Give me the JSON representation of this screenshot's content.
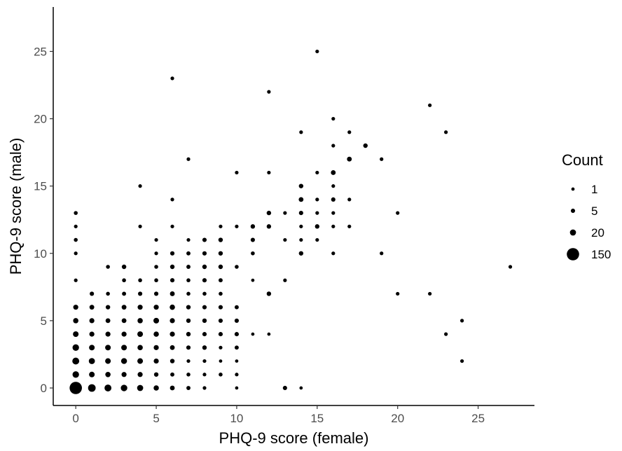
{
  "chart_data": {
    "type": "scatter",
    "title": "",
    "xlabel": "PHQ-9 score (female)",
    "ylabel": "PHQ-9 score (male)",
    "xlim": [
      -1.4,
      28.5
    ],
    "ylim": [
      -1.3,
      28.3
    ],
    "xticks": [
      0,
      5,
      10,
      15,
      20,
      25
    ],
    "yticks": [
      0,
      5,
      10,
      15,
      20,
      25
    ],
    "grid": false,
    "legend": {
      "title": "Count",
      "placement": "right",
      "entries": [
        {
          "label": "1",
          "value": 1
        },
        {
          "label": "5",
          "value": 5
        },
        {
          "label": "20",
          "value": 20
        },
        {
          "label": "150",
          "value": 150
        }
      ]
    },
    "points": [
      {
        "x": 0,
        "y": 0,
        "count": 150
      },
      {
        "x": 1,
        "y": 0,
        "count": 40
      },
      {
        "x": 2,
        "y": 0,
        "count": 30
      },
      {
        "x": 3,
        "y": 0,
        "count": 25
      },
      {
        "x": 4,
        "y": 0,
        "count": 20
      },
      {
        "x": 5,
        "y": 0,
        "count": 12
      },
      {
        "x": 6,
        "y": 0,
        "count": 8
      },
      {
        "x": 7,
        "y": 0,
        "count": 4
      },
      {
        "x": 8,
        "y": 0,
        "count": 2
      },
      {
        "x": 10,
        "y": 0,
        "count": 1
      },
      {
        "x": 13,
        "y": 0,
        "count": 5
      },
      {
        "x": 14,
        "y": 0,
        "count": 1
      },
      {
        "x": 0,
        "y": 1,
        "count": 25
      },
      {
        "x": 1,
        "y": 1,
        "count": 15
      },
      {
        "x": 2,
        "y": 1,
        "count": 12
      },
      {
        "x": 3,
        "y": 1,
        "count": 10
      },
      {
        "x": 4,
        "y": 1,
        "count": 10
      },
      {
        "x": 5,
        "y": 1,
        "count": 6
      },
      {
        "x": 6,
        "y": 1,
        "count": 4
      },
      {
        "x": 7,
        "y": 1,
        "count": 3
      },
      {
        "x": 8,
        "y": 1,
        "count": 2
      },
      {
        "x": 9,
        "y": 1,
        "count": 3
      },
      {
        "x": 10,
        "y": 1,
        "count": 2
      },
      {
        "x": 0,
        "y": 2,
        "count": 30
      },
      {
        "x": 1,
        "y": 2,
        "count": 20
      },
      {
        "x": 2,
        "y": 2,
        "count": 15
      },
      {
        "x": 3,
        "y": 2,
        "count": 18
      },
      {
        "x": 4,
        "y": 2,
        "count": 15
      },
      {
        "x": 5,
        "y": 2,
        "count": 10
      },
      {
        "x": 6,
        "y": 2,
        "count": 6
      },
      {
        "x": 7,
        "y": 2,
        "count": 2
      },
      {
        "x": 8,
        "y": 2,
        "count": 2
      },
      {
        "x": 9,
        "y": 2,
        "count": 1
      },
      {
        "x": 10,
        "y": 2,
        "count": 1
      },
      {
        "x": 0,
        "y": 3,
        "count": 25
      },
      {
        "x": 1,
        "y": 3,
        "count": 15
      },
      {
        "x": 2,
        "y": 3,
        "count": 15
      },
      {
        "x": 3,
        "y": 3,
        "count": 15
      },
      {
        "x": 4,
        "y": 3,
        "count": 12
      },
      {
        "x": 5,
        "y": 3,
        "count": 10
      },
      {
        "x": 6,
        "y": 3,
        "count": 8
      },
      {
        "x": 7,
        "y": 3,
        "count": 5
      },
      {
        "x": 8,
        "y": 3,
        "count": 6
      },
      {
        "x": 9,
        "y": 3,
        "count": 2
      },
      {
        "x": 10,
        "y": 3,
        "count": 4
      },
      {
        "x": 0,
        "y": 4,
        "count": 15
      },
      {
        "x": 1,
        "y": 4,
        "count": 10
      },
      {
        "x": 2,
        "y": 4,
        "count": 10
      },
      {
        "x": 3,
        "y": 4,
        "count": 10
      },
      {
        "x": 4,
        "y": 4,
        "count": 15
      },
      {
        "x": 5,
        "y": 4,
        "count": 12
      },
      {
        "x": 6,
        "y": 4,
        "count": 10
      },
      {
        "x": 7,
        "y": 4,
        "count": 6
      },
      {
        "x": 8,
        "y": 4,
        "count": 5
      },
      {
        "x": 9,
        "y": 4,
        "count": 5
      },
      {
        "x": 10,
        "y": 4,
        "count": 5
      },
      {
        "x": 11,
        "y": 4,
        "count": 1
      },
      {
        "x": 12,
        "y": 4,
        "count": 1
      },
      {
        "x": 0,
        "y": 5,
        "count": 12
      },
      {
        "x": 1,
        "y": 5,
        "count": 10
      },
      {
        "x": 2,
        "y": 5,
        "count": 8
      },
      {
        "x": 3,
        "y": 5,
        "count": 8
      },
      {
        "x": 4,
        "y": 5,
        "count": 12
      },
      {
        "x": 5,
        "y": 5,
        "count": 15
      },
      {
        "x": 6,
        "y": 5,
        "count": 10
      },
      {
        "x": 7,
        "y": 5,
        "count": 6
      },
      {
        "x": 8,
        "y": 5,
        "count": 6
      },
      {
        "x": 9,
        "y": 5,
        "count": 5
      },
      {
        "x": 10,
        "y": 5,
        "count": 5
      },
      {
        "x": 0,
        "y": 6,
        "count": 10
      },
      {
        "x": 1,
        "y": 6,
        "count": 8
      },
      {
        "x": 2,
        "y": 6,
        "count": 6
      },
      {
        "x": 3,
        "y": 6,
        "count": 8
      },
      {
        "x": 4,
        "y": 6,
        "count": 10
      },
      {
        "x": 5,
        "y": 6,
        "count": 10
      },
      {
        "x": 6,
        "y": 6,
        "count": 12
      },
      {
        "x": 7,
        "y": 6,
        "count": 6
      },
      {
        "x": 8,
        "y": 6,
        "count": 5
      },
      {
        "x": 9,
        "y": 6,
        "count": 5
      },
      {
        "x": 10,
        "y": 6,
        "count": 4
      },
      {
        "x": 1,
        "y": 7,
        "count": 5
      },
      {
        "x": 2,
        "y": 7,
        "count": 3
      },
      {
        "x": 3,
        "y": 7,
        "count": 4
      },
      {
        "x": 4,
        "y": 7,
        "count": 5
      },
      {
        "x": 5,
        "y": 7,
        "count": 5
      },
      {
        "x": 6,
        "y": 7,
        "count": 8
      },
      {
        "x": 7,
        "y": 7,
        "count": 3
      },
      {
        "x": 8,
        "y": 7,
        "count": 3
      },
      {
        "x": 9,
        "y": 7,
        "count": 3
      },
      {
        "x": 12,
        "y": 7,
        "count": 6
      },
      {
        "x": 20,
        "y": 7,
        "count": 2
      },
      {
        "x": 22,
        "y": 7,
        "count": 2
      },
      {
        "x": 0,
        "y": 8,
        "count": 2
      },
      {
        "x": 3,
        "y": 8,
        "count": 3
      },
      {
        "x": 4,
        "y": 8,
        "count": 3
      },
      {
        "x": 5,
        "y": 8,
        "count": 3
      },
      {
        "x": 6,
        "y": 8,
        "count": 5
      },
      {
        "x": 7,
        "y": 8,
        "count": 3
      },
      {
        "x": 8,
        "y": 8,
        "count": 5
      },
      {
        "x": 9,
        "y": 8,
        "count": 4
      },
      {
        "x": 11,
        "y": 8,
        "count": 1
      },
      {
        "x": 13,
        "y": 8,
        "count": 2
      },
      {
        "x": 2,
        "y": 9,
        "count": 3
      },
      {
        "x": 3,
        "y": 9,
        "count": 6
      },
      {
        "x": 5,
        "y": 9,
        "count": 3
      },
      {
        "x": 6,
        "y": 9,
        "count": 6
      },
      {
        "x": 7,
        "y": 9,
        "count": 4
      },
      {
        "x": 8,
        "y": 9,
        "count": 6
      },
      {
        "x": 9,
        "y": 9,
        "count": 6
      },
      {
        "x": 10,
        "y": 9,
        "count": 3
      },
      {
        "x": 27,
        "y": 9,
        "count": 2
      },
      {
        "x": 0,
        "y": 10,
        "count": 2
      },
      {
        "x": 5,
        "y": 10,
        "count": 2
      },
      {
        "x": 6,
        "y": 10,
        "count": 5
      },
      {
        "x": 7,
        "y": 10,
        "count": 4
      },
      {
        "x": 8,
        "y": 10,
        "count": 5
      },
      {
        "x": 9,
        "y": 10,
        "count": 6
      },
      {
        "x": 11,
        "y": 10,
        "count": 3
      },
      {
        "x": 14,
        "y": 10,
        "count": 6
      },
      {
        "x": 16,
        "y": 10,
        "count": 2
      },
      {
        "x": 19,
        "y": 10,
        "count": 2
      },
      {
        "x": 0,
        "y": 11,
        "count": 3
      },
      {
        "x": 5,
        "y": 11,
        "count": 2
      },
      {
        "x": 7,
        "y": 11,
        "count": 2
      },
      {
        "x": 8,
        "y": 11,
        "count": 5
      },
      {
        "x": 9,
        "y": 11,
        "count": 6
      },
      {
        "x": 11,
        "y": 11,
        "count": 5
      },
      {
        "x": 13,
        "y": 11,
        "count": 2
      },
      {
        "x": 14,
        "y": 11,
        "count": 2
      },
      {
        "x": 15,
        "y": 11,
        "count": 2
      },
      {
        "x": 0,
        "y": 12,
        "count": 2
      },
      {
        "x": 4,
        "y": 12,
        "count": 2
      },
      {
        "x": 6,
        "y": 12,
        "count": 2
      },
      {
        "x": 9,
        "y": 12,
        "count": 2
      },
      {
        "x": 10,
        "y": 12,
        "count": 2
      },
      {
        "x": 11,
        "y": 12,
        "count": 6
      },
      {
        "x": 12,
        "y": 12,
        "count": 6
      },
      {
        "x": 14,
        "y": 12,
        "count": 2
      },
      {
        "x": 15,
        "y": 12,
        "count": 6
      },
      {
        "x": 16,
        "y": 12,
        "count": 2
      },
      {
        "x": 17,
        "y": 12,
        "count": 2
      },
      {
        "x": 0,
        "y": 13,
        "count": 3
      },
      {
        "x": 12,
        "y": 13,
        "count": 6
      },
      {
        "x": 13,
        "y": 13,
        "count": 2
      },
      {
        "x": 14,
        "y": 13,
        "count": 5
      },
      {
        "x": 15,
        "y": 13,
        "count": 2
      },
      {
        "x": 16,
        "y": 13,
        "count": 2
      },
      {
        "x": 20,
        "y": 13,
        "count": 2
      },
      {
        "x": 14,
        "y": 14,
        "count": 8
      },
      {
        "x": 6,
        "y": 14,
        "count": 2
      },
      {
        "x": 15,
        "y": 14,
        "count": 2
      },
      {
        "x": 16,
        "y": 14,
        "count": 5
      },
      {
        "x": 17,
        "y": 14,
        "count": 2
      },
      {
        "x": 4,
        "y": 15,
        "count": 2
      },
      {
        "x": 14,
        "y": 15,
        "count": 6
      },
      {
        "x": 16,
        "y": 15,
        "count": 2
      },
      {
        "x": 10,
        "y": 16,
        "count": 2
      },
      {
        "x": 12,
        "y": 16,
        "count": 2
      },
      {
        "x": 15,
        "y": 16,
        "count": 2
      },
      {
        "x": 16,
        "y": 16,
        "count": 8
      },
      {
        "x": 7,
        "y": 17,
        "count": 2
      },
      {
        "x": 17,
        "y": 17,
        "count": 8
      },
      {
        "x": 19,
        "y": 17,
        "count": 2
      },
      {
        "x": 16,
        "y": 18,
        "count": 2
      },
      {
        "x": 18,
        "y": 18,
        "count": 6
      },
      {
        "x": 14,
        "y": 19,
        "count": 2
      },
      {
        "x": 17,
        "y": 19,
        "count": 2
      },
      {
        "x": 23,
        "y": 19,
        "count": 2
      },
      {
        "x": 16,
        "y": 20,
        "count": 2
      },
      {
        "x": 22,
        "y": 21,
        "count": 2
      },
      {
        "x": 12,
        "y": 22,
        "count": 2
      },
      {
        "x": 6,
        "y": 23,
        "count": 2
      },
      {
        "x": 15,
        "y": 25,
        "count": 2
      },
      {
        "x": 24,
        "y": 2,
        "count": 2
      },
      {
        "x": 23,
        "y": 4,
        "count": 2
      },
      {
        "x": 24,
        "y": 5,
        "count": 2
      }
    ]
  },
  "style": {
    "point_color": "#000000",
    "axis_color": "#000000",
    "tick_label_color": "#4d4d4d",
    "background": "#ffffff"
  }
}
